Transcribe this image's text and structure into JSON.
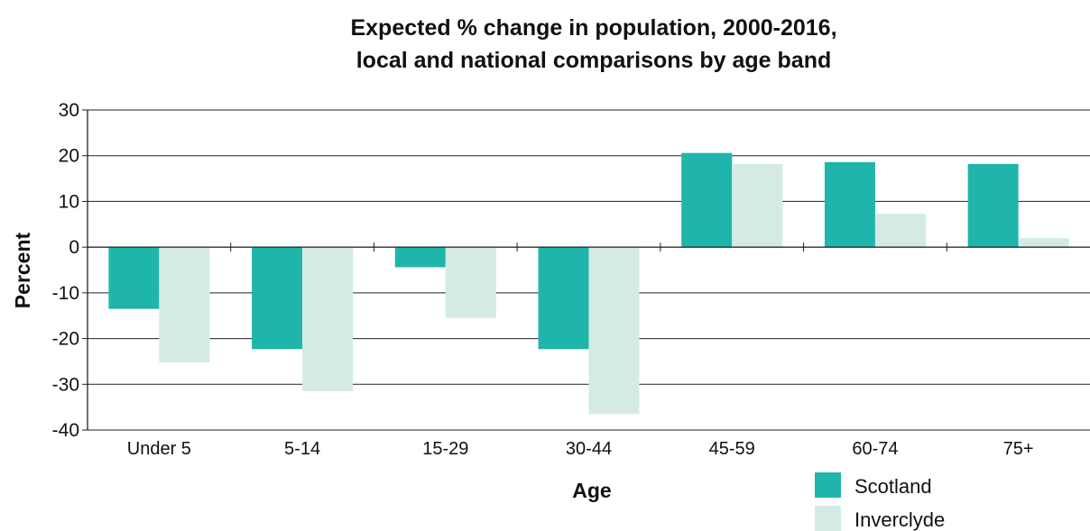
{
  "chart_data": {
    "type": "bar",
    "title_line1": "Expected % change in population, 2000-2016,",
    "title_line2": "local and national comparisons by age band",
    "xlabel": "Age",
    "ylabel": "Percent",
    "categories": [
      "Under 5",
      "5-14",
      "15-29",
      "30-44",
      "45-59",
      "60-74",
      "75+"
    ],
    "series": [
      {
        "name": "Scotland",
        "color": "#20b5aa",
        "values": [
          -13.5,
          -22.3,
          -4.4,
          -22.3,
          20.6,
          18.6,
          18.2
        ]
      },
      {
        "name": "Inverclyde",
        "color": "#d4ebe5",
        "values": [
          -25.2,
          -31.5,
          -15.5,
          -36.5,
          18.2,
          7.3,
          2.0
        ]
      }
    ],
    "ylim": [
      -40,
      30
    ],
    "yticks": [
      "30",
      "20",
      "10",
      "0",
      "-10",
      "-20",
      "-30",
      "-40"
    ],
    "grid": true,
    "legend_position": "bottom-right"
  }
}
